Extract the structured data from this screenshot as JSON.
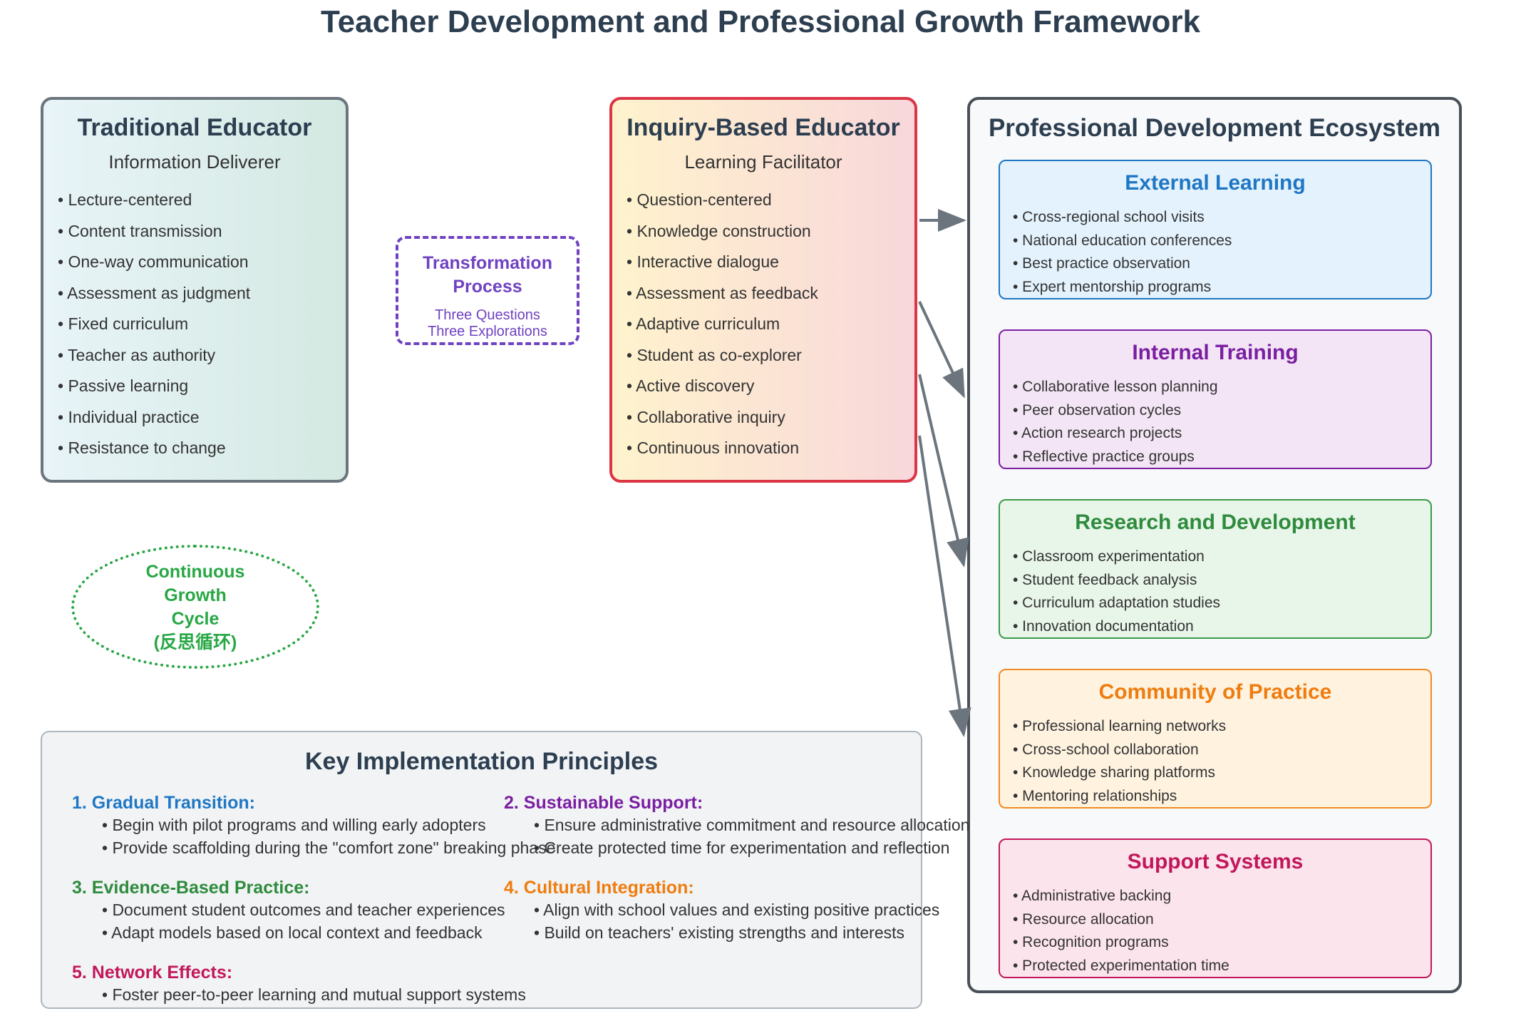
{
  "title": "Teacher Development and Professional Growth Framework",
  "traditional": {
    "title": "Traditional Educator",
    "subtitle": "Information Deliverer",
    "items": [
      "• Lecture-centered",
      "• Content transmission",
      "• One-way communication",
      "• Assessment as judgment",
      "• Fixed curriculum",
      "• Teacher as authority",
      "• Passive learning",
      "• Individual practice",
      "• Resistance to change"
    ]
  },
  "transformation": {
    "title_line1": "Transformation",
    "title_line2": "Process",
    "line1": "Three Questions",
    "line2": "Three Explorations"
  },
  "inquiry": {
    "title": "Inquiry-Based Educator",
    "subtitle": "Learning Facilitator",
    "items": [
      "• Question-centered",
      "• Knowledge construction",
      "• Interactive dialogue",
      "• Assessment as feedback",
      "• Adaptive curriculum",
      "• Student as co-explorer",
      "• Active discovery",
      "• Collaborative inquiry",
      "• Continuous innovation"
    ]
  },
  "cycle": {
    "line1": "Continuous",
    "line2": "Growth",
    "line3": "Cycle",
    "line4": "(反思循环)"
  },
  "ecosystem": {
    "title": "Professional Development Ecosystem",
    "sections": [
      {
        "title": "External Learning",
        "color": "#1f77c4",
        "bg": "#e3f2fd",
        "border": "#1f77c4",
        "items": [
          "• Cross-regional school visits",
          "• National education conferences",
          "• Best practice observation",
          "• Expert mentorship programs"
        ]
      },
      {
        "title": "Internal Training",
        "color": "#7b1fa2",
        "bg": "#f3e5f5",
        "border": "#7b1fa2",
        "items": [
          "• Collaborative lesson planning",
          "• Peer observation cycles",
          "• Action research projects",
          "• Reflective practice groups"
        ]
      },
      {
        "title": "Research and Development",
        "color": "#2e8b3d",
        "bg": "#e8f5e9",
        "border": "#3c9a4a",
        "items": [
          "• Classroom experimentation",
          "• Student feedback analysis",
          "• Curriculum adaptation studies",
          "• Innovation documentation"
        ]
      },
      {
        "title": "Community of Practice",
        "color": "#ef7c0f",
        "bg": "#fff3e0",
        "border": "#f08a24",
        "items": [
          "• Professional learning networks",
          "• Cross-school collaboration",
          "• Knowledge sharing platforms",
          "• Mentoring relationships"
        ]
      },
      {
        "title": "Support Systems",
        "color": "#c2185b",
        "bg": "#fce4ec",
        "border": "#c2185b",
        "items": [
          "• Administrative backing",
          "• Resource allocation",
          "• Recognition programs",
          "• Protected experimentation time"
        ]
      }
    ]
  },
  "principles": {
    "title": "Key Implementation Principles",
    "blocks": [
      {
        "heading": "1. Gradual Transition:",
        "color": "#1f77c4",
        "items": [
          "• Begin with pilot programs and willing early adopters",
          "• Provide scaffolding during the \"comfort zone\" breaking phase"
        ]
      },
      {
        "heading": "2. Sustainable Support:",
        "color": "#7b1fa2",
        "items": [
          "• Ensure administrative commitment and resource allocation",
          "• Create protected time for experimentation and reflection"
        ]
      },
      {
        "heading": "3. Evidence-Based Practice:",
        "color": "#2e8b3d",
        "items": [
          "• Document student outcomes and teacher experiences",
          "• Adapt models based on local context and feedback"
        ]
      },
      {
        "heading": "4. Cultural Integration:",
        "color": "#ef7c0f",
        "items": [
          "• Align with school values and existing positive practices",
          "• Build on teachers' existing strengths and interests"
        ]
      },
      {
        "heading": "5. Network Effects:",
        "color": "#c2185b",
        "items": [
          "• Foster peer-to-peer learning and mutual support systems"
        ]
      }
    ]
  },
  "colors": {
    "arrow": "#6c757d",
    "inquiry_border": "#dc3545",
    "transform": "#6f42c1",
    "cycle": "#28a745"
  }
}
